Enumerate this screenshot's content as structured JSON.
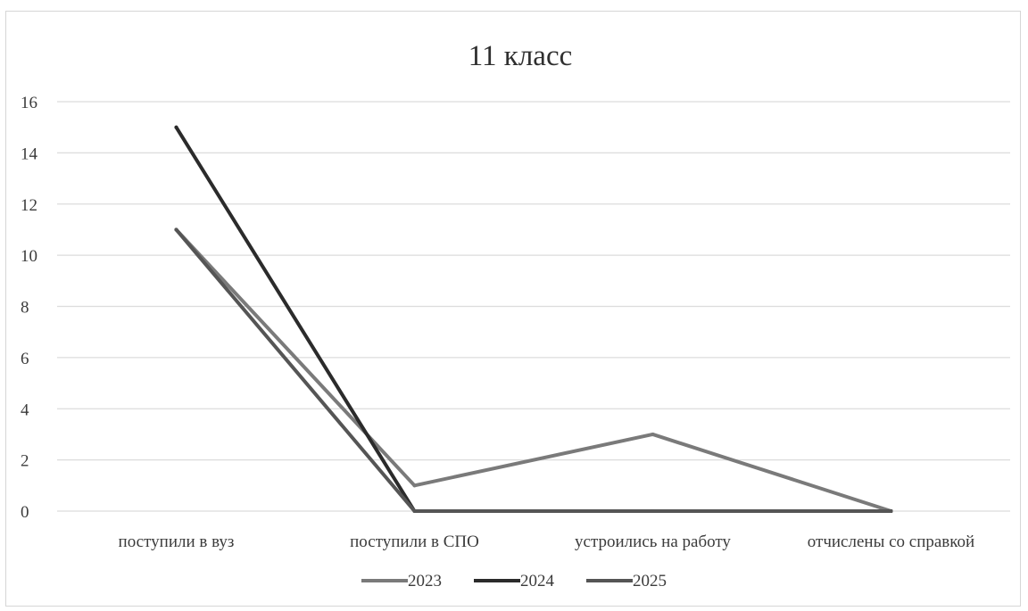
{
  "chart_data": {
    "type": "line",
    "title": "11 класс",
    "xlabel": "",
    "ylabel": "",
    "categories": [
      "поступили в вуз",
      "поступили в СПО",
      "устроились на работу",
      "отчислены со справкой"
    ],
    "ylim": [
      0,
      16
    ],
    "yticks": [
      0,
      2,
      4,
      6,
      8,
      10,
      12,
      14,
      16
    ],
    "grid": true,
    "legend_position": "bottom",
    "series": [
      {
        "name": "2023",
        "values": [
          11,
          1,
          3,
          0
        ],
        "color": "#7a7a7a"
      },
      {
        "name": "2024",
        "values": [
          15,
          0,
          0,
          0
        ],
        "color": "#2b2b2b"
      },
      {
        "name": "2025",
        "values": [
          11,
          0,
          0,
          0
        ],
        "color": "#555555"
      }
    ]
  }
}
